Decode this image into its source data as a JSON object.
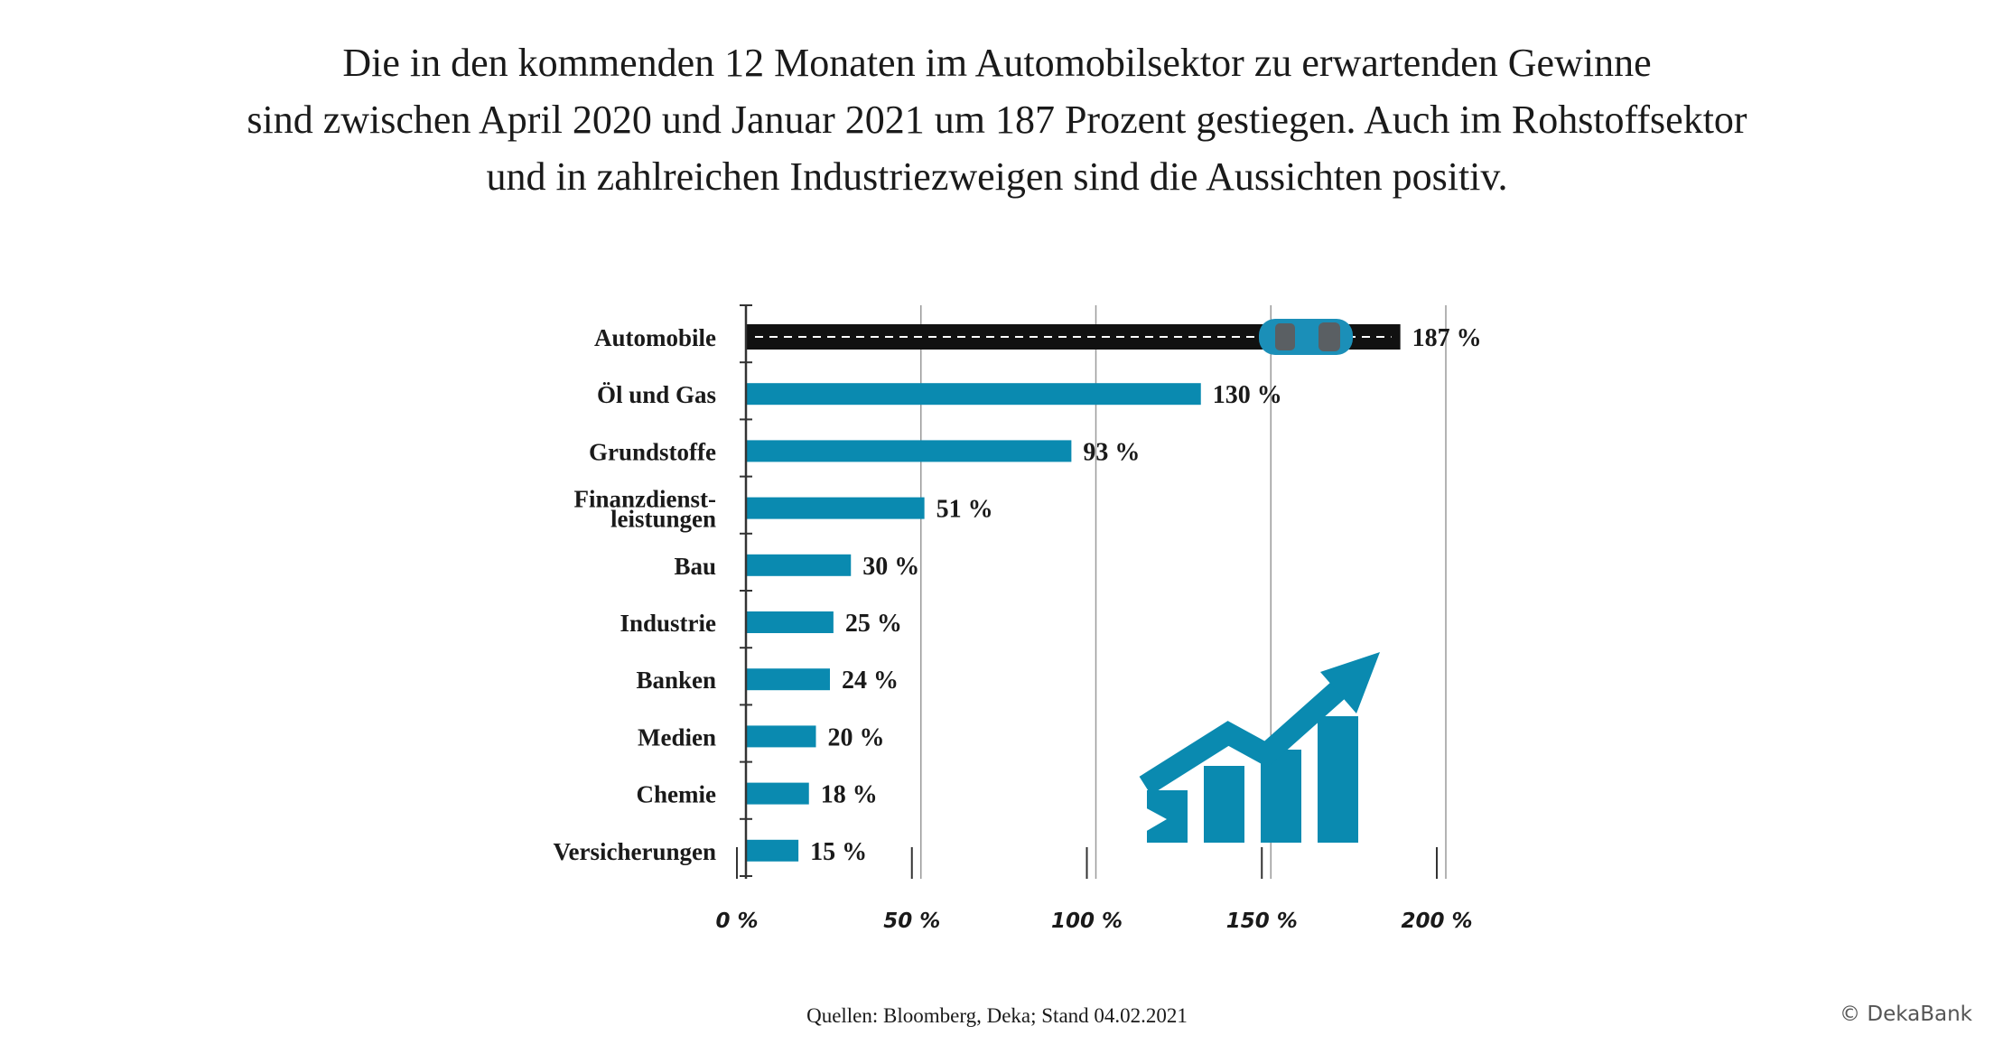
{
  "headline": {
    "lines": [
      "Die in den kommenden 12 Monaten im Automobilsektor zu erwartenden Gewinne",
      "sind zwischen April 2020 und Januar 2021 um 187 Prozent gestiegen. Auch im Rohstoffsektor",
      "und in zahlreichen Industriezweigen sind die Aussichten positiv."
    ]
  },
  "chart_data": {
    "type": "bar",
    "orientation": "horizontal",
    "categories": [
      [
        "Automobile"
      ],
      [
        "Öl und Gas"
      ],
      [
        "Grundstoffe"
      ],
      [
        "Finanzdienst-",
        "leistungen"
      ],
      [
        "Bau"
      ],
      [
        "Industrie"
      ],
      [
        "Banken"
      ],
      [
        "Medien"
      ],
      [
        "Chemie"
      ],
      [
        "Versicherungen"
      ]
    ],
    "values": [
      187,
      130,
      93,
      51,
      30,
      25,
      24,
      20,
      18,
      15
    ],
    "value_labels": [
      "187 %",
      "130 %",
      "93 %",
      "51 %",
      "30 %",
      "25 %",
      "24 %",
      "20 %",
      "18 %",
      "15 %"
    ],
    "xlim": [
      0,
      200
    ],
    "xticks": [
      0,
      50,
      100,
      150,
      200
    ],
    "xtick_labels": [
      "0 %",
      "50 %",
      "100 %",
      "150 %",
      "200 %"
    ],
    "grid": true,
    "highlight_index": 0,
    "colors": {
      "bar": "#0a8ab0",
      "highlight_bar": "#111111",
      "car": "#1b8fb8",
      "grid": "#9a9a9a",
      "axis": "#333333"
    },
    "decoration": [
      "car-icon",
      "rising-chart-arrow-icon"
    ]
  },
  "footer": {
    "source": "Quellen: Bloomberg, Deka; Stand 04.02.2021",
    "copyright": "© DekaBank"
  }
}
